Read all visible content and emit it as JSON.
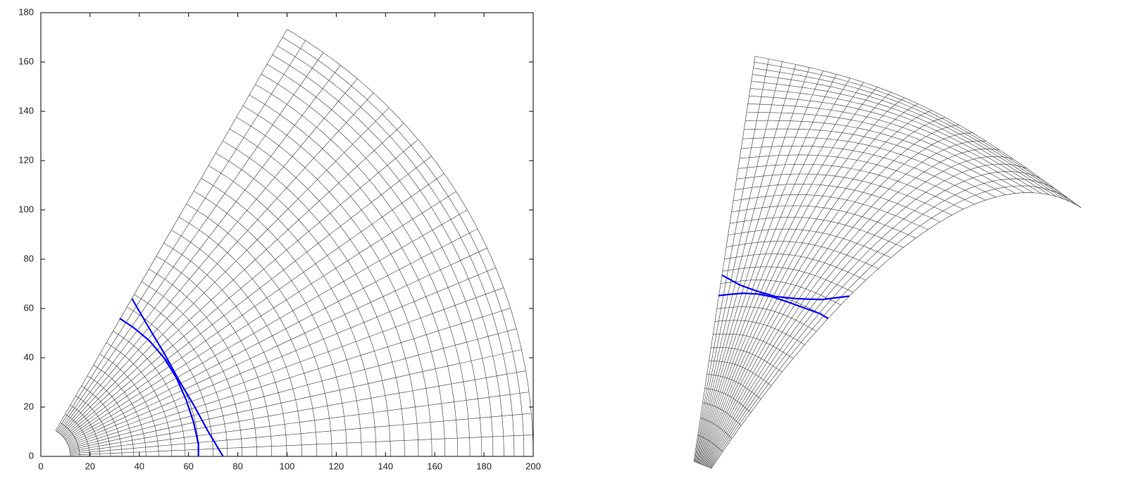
{
  "chart_data": {
    "type": "line",
    "xlim": [
      0,
      200
    ],
    "ylim": [
      0,
      180
    ],
    "xticks": [
      0,
      20,
      40,
      60,
      80,
      100,
      120,
      140,
      160,
      180,
      200
    ],
    "yticks": [
      0,
      20,
      40,
      60,
      80,
      100,
      120,
      140,
      160,
      180
    ],
    "series": [
      {
        "color": "#0000ff",
        "x": [
          37,
          44,
          50,
          56,
          62,
          68,
          74
        ],
        "values": [
          64,
          52,
          42,
          31,
          21,
          10,
          0
        ]
      },
      {
        "color": "#0000ff",
        "x": [
          32,
          38,
          44,
          50,
          55,
          59,
          62,
          64,
          64
        ],
        "values": [
          56,
          52,
          47,
          40,
          32,
          23,
          14,
          5,
          0
        ]
      }
    ]
  }
}
